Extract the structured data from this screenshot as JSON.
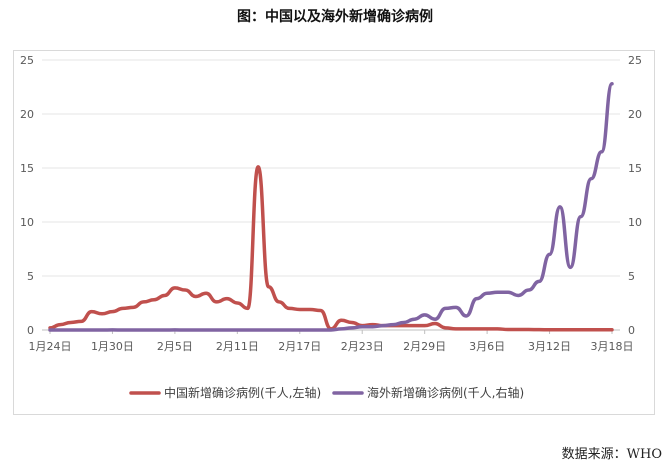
{
  "title": "图：中国以及海外新增确诊病例",
  "source": "数据来源：WHO",
  "chart_data": {
    "type": "line",
    "title": "图：中国以及海外新增确诊病例",
    "x_tick_labels": [
      "1月24日",
      "1月30日",
      "2月5日",
      "2月11日",
      "2月17日",
      "2月23日",
      "2月29日",
      "3月6日",
      "3月12日",
      "3月18日"
    ],
    "left_axis": {
      "ticks": [
        0,
        5,
        10,
        15,
        20,
        25
      ],
      "ylim": [
        0,
        25
      ]
    },
    "right_axis": {
      "ticks": [
        0,
        5,
        10,
        15,
        20,
        25
      ],
      "ylim": [
        0,
        25
      ]
    },
    "legend_position": "bottom",
    "grid": "horizontal",
    "colors": {
      "china": "#c0504d",
      "overseas": "#8064a2"
    },
    "series": [
      {
        "name": "中国新增确诊病例(千人,左轴)",
        "axis": "left",
        "color": "#c0504d",
        "x": [
          "1月24日",
          "1月25日",
          "1月26日",
          "1月27日",
          "1月28日",
          "1月29日",
          "1月30日",
          "1月31日",
          "2月1日",
          "2月2日",
          "2月3日",
          "2月4日",
          "2月5日",
          "2月6日",
          "2月7日",
          "2月8日",
          "2月9日",
          "2月10日",
          "2月11日",
          "2月12日",
          "2月13日",
          "2月14日",
          "2月15日",
          "2月16日",
          "2月17日",
          "2月18日",
          "2月19日",
          "2月20日",
          "2月21日",
          "2月22日",
          "2月23日",
          "2月24日",
          "2月25日",
          "2月26日",
          "2月27日",
          "2月28日",
          "2月29日",
          "3月1日",
          "3月2日",
          "3月3日",
          "3月4日",
          "3月5日",
          "3月6日",
          "3月7日",
          "3月8日",
          "3月9日",
          "3月10日",
          "3月11日",
          "3月12日",
          "3月13日",
          "3月14日",
          "3月15日",
          "3月16日",
          "3月17日",
          "3月18日"
        ],
        "values": [
          0.2,
          0.5,
          0.7,
          0.8,
          1.7,
          1.5,
          1.7,
          2.0,
          2.1,
          2.6,
          2.8,
          3.2,
          3.9,
          3.7,
          3.1,
          3.4,
          2.6,
          2.9,
          2.5,
          2.0,
          15.1,
          4.0,
          2.6,
          2.0,
          1.9,
          1.9,
          1.8,
          0.1,
          0.9,
          0.7,
          0.4,
          0.5,
          0.4,
          0.4,
          0.4,
          0.4,
          0.4,
          0.6,
          0.2,
          0.1,
          0.1,
          0.1,
          0.1,
          0.1,
          0.05,
          0.05,
          0.05,
          0.03,
          0.02,
          0.02,
          0.02,
          0.02,
          0.02,
          0.02,
          0.02
        ]
      },
      {
        "name": "海外新增确诊病例(千人,右轴)",
        "axis": "right",
        "color": "#8064a2",
        "x": [
          "1月24日",
          "1月25日",
          "1月26日",
          "1月27日",
          "1月28日",
          "1月29日",
          "1月30日",
          "1月31日",
          "2月1日",
          "2月2日",
          "2月3日",
          "2月4日",
          "2月5日",
          "2月6日",
          "2月7日",
          "2月8日",
          "2月9日",
          "2月10日",
          "2月11日",
          "2月12日",
          "2月13日",
          "2月14日",
          "2月15日",
          "2月16日",
          "2月17日",
          "2月18日",
          "2月19日",
          "2月20日",
          "2月21日",
          "2月22日",
          "2月23日",
          "2月24日",
          "2月25日",
          "2月26日",
          "2月27日",
          "2月28日",
          "2月29日",
          "3月1日",
          "3月2日",
          "3月3日",
          "3月4日",
          "3月5日",
          "3月6日",
          "3月7日",
          "3月8日",
          "3月9日",
          "3月10日",
          "3月11日",
          "3月12日",
          "3月13日",
          "3月14日",
          "3月15日",
          "3月16日",
          "3月17日",
          "3月18日"
        ],
        "values": [
          0.0,
          0.0,
          0.0,
          0.0,
          0.0,
          0.0,
          0.01,
          0.0,
          0.0,
          0.0,
          0.0,
          0.0,
          0.01,
          0.0,
          0.0,
          0.0,
          0.0,
          0.0,
          0.0,
          0.0,
          0.0,
          0.0,
          0.0,
          0.0,
          0.0,
          0.0,
          0.0,
          0.0,
          0.1,
          0.2,
          0.3,
          0.3,
          0.4,
          0.5,
          0.7,
          1.0,
          1.4,
          1.0,
          2.0,
          2.1,
          1.3,
          2.9,
          3.4,
          3.5,
          3.5,
          3.2,
          3.7,
          4.5,
          7.0,
          11.4,
          5.8,
          10.5,
          14.0,
          16.5,
          22.8
        ]
      }
    ]
  }
}
